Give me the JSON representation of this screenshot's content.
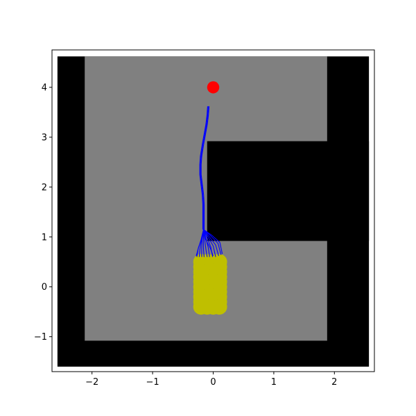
{
  "chart_data": {
    "type": "scatter",
    "title": "",
    "xlabel": "",
    "ylabel": "",
    "xlim": [
      -2.66,
      2.66
    ],
    "ylim": [
      -1.7,
      4.75
    ],
    "x_ticks": [
      -2,
      -1,
      0,
      1,
      2
    ],
    "y_ticks": [
      -1,
      0,
      1,
      2,
      3,
      4
    ],
    "x_tick_labels": [
      "−2",
      "−1",
      "0",
      "1",
      "2"
    ],
    "y_tick_labels": [
      "−1",
      "0",
      "1",
      "2",
      "3",
      "4"
    ],
    "grid": false,
    "colors": {
      "wall": "#000000",
      "free_space": "#808080",
      "trajectory": "#0000ff",
      "start": "#bfbf00",
      "goal": "#ff0000"
    },
    "walls": [
      {
        "x": [
          -2.57,
          2.57
        ],
        "y": [
          -1.6,
          4.62
        ]
      }
    ],
    "free_space": [
      {
        "x": [
          -2.12,
          1.88
        ],
        "y": [
          -1.08,
          4.62
        ]
      }
    ],
    "obstacles": [
      {
        "x": [
          -0.1,
          2.57
        ],
        "y": [
          0.92,
          2.92
        ]
      }
    ],
    "goal": {
      "x": 0.0,
      "y": 4.0,
      "radius": 0.1
    },
    "start_points": [
      {
        "x": -0.2,
        "y": 0.5
      },
      {
        "x": -0.1,
        "y": 0.5
      },
      {
        "x": 0.0,
        "y": 0.5
      },
      {
        "x": 0.1,
        "y": 0.5
      },
      {
        "x": -0.2,
        "y": 0.4
      },
      {
        "x": -0.1,
        "y": 0.4
      },
      {
        "x": 0.0,
        "y": 0.4
      },
      {
        "x": 0.1,
        "y": 0.4
      },
      {
        "x": -0.2,
        "y": 0.3
      },
      {
        "x": -0.1,
        "y": 0.3
      },
      {
        "x": 0.0,
        "y": 0.3
      },
      {
        "x": 0.1,
        "y": 0.3
      },
      {
        "x": -0.2,
        "y": 0.2
      },
      {
        "x": -0.1,
        "y": 0.2
      },
      {
        "x": 0.0,
        "y": 0.2
      },
      {
        "x": 0.1,
        "y": 0.2
      },
      {
        "x": -0.2,
        "y": 0.1
      },
      {
        "x": -0.1,
        "y": 0.1
      },
      {
        "x": 0.0,
        "y": 0.1
      },
      {
        "x": 0.1,
        "y": 0.1
      },
      {
        "x": -0.2,
        "y": 0.0
      },
      {
        "x": -0.1,
        "y": 0.0
      },
      {
        "x": 0.0,
        "y": 0.0
      },
      {
        "x": 0.1,
        "y": 0.0
      },
      {
        "x": -0.2,
        "y": -0.1
      },
      {
        "x": -0.1,
        "y": -0.1
      },
      {
        "x": 0.0,
        "y": -0.1
      },
      {
        "x": 0.1,
        "y": -0.1
      },
      {
        "x": -0.2,
        "y": -0.2
      },
      {
        "x": -0.1,
        "y": -0.2
      },
      {
        "x": 0.0,
        "y": -0.2
      },
      {
        "x": 0.1,
        "y": -0.2
      },
      {
        "x": -0.2,
        "y": -0.3
      },
      {
        "x": -0.1,
        "y": -0.3
      },
      {
        "x": 0.0,
        "y": -0.3
      },
      {
        "x": 0.1,
        "y": -0.3
      },
      {
        "x": -0.2,
        "y": -0.4
      },
      {
        "x": -0.1,
        "y": -0.4
      },
      {
        "x": 0.0,
        "y": -0.4
      },
      {
        "x": 0.1,
        "y": -0.4
      }
    ],
    "trajectory_trunk": {
      "x": [
        -0.08,
        -0.09,
        -0.11,
        -0.14,
        -0.17,
        -0.2,
        -0.21,
        -0.21,
        -0.19,
        -0.17,
        -0.16,
        -0.16,
        -0.16,
        -0.16
      ],
      "y": [
        3.62,
        3.45,
        3.25,
        3.05,
        2.85,
        2.62,
        2.45,
        2.25,
        2.05,
        1.85,
        1.65,
        1.45,
        1.3,
        1.15
      ]
    },
    "trajectory_branches": [
      {
        "x": [
          -0.16,
          -0.2,
          -0.25,
          -0.27
        ],
        "y": [
          1.15,
          0.95,
          0.75,
          0.6
        ]
      },
      {
        "x": [
          -0.16,
          -0.19,
          -0.22,
          -0.23
        ],
        "y": [
          1.15,
          0.95,
          0.75,
          0.6
        ]
      },
      {
        "x": [
          -0.16,
          -0.18,
          -0.19,
          -0.19
        ],
        "y": [
          1.15,
          0.95,
          0.75,
          0.6
        ]
      },
      {
        "x": [
          -0.16,
          -0.16,
          -0.16,
          -0.15
        ],
        "y": [
          1.15,
          0.95,
          0.75,
          0.6
        ]
      },
      {
        "x": [
          -0.16,
          -0.14,
          -0.12,
          -0.1
        ],
        "y": [
          1.15,
          0.95,
          0.75,
          0.6
        ]
      },
      {
        "x": [
          -0.16,
          -0.12,
          -0.08,
          -0.06
        ],
        "y": [
          1.15,
          0.97,
          0.78,
          0.6
        ]
      },
      {
        "x": [
          -0.16,
          -0.1,
          -0.04,
          -0.01
        ],
        "y": [
          1.15,
          0.98,
          0.8,
          0.6
        ]
      },
      {
        "x": [
          -0.16,
          -0.08,
          0.0,
          0.04
        ],
        "y": [
          1.15,
          0.99,
          0.82,
          0.6
        ]
      },
      {
        "x": [
          -0.16,
          -0.06,
          0.04,
          0.09
        ],
        "y": [
          1.15,
          1.0,
          0.84,
          0.62
        ]
      },
      {
        "x": [
          -0.16,
          -0.04,
          0.08,
          0.13
        ],
        "y": [
          1.15,
          1.02,
          0.87,
          0.64
        ]
      },
      {
        "x": [
          -0.16,
          -0.02,
          0.11,
          0.15
        ],
        "y": [
          1.15,
          1.03,
          0.89,
          0.66
        ]
      },
      {
        "x": [
          -0.16,
          -0.18,
          -0.24,
          -0.28
        ],
        "y": [
          1.15,
          1.0,
          0.8,
          0.62
        ]
      },
      {
        "x": [
          -0.16,
          -0.13,
          -0.05,
          0.0
        ],
        "y": [
          1.15,
          0.96,
          0.78,
          0.62
        ]
      }
    ]
  }
}
